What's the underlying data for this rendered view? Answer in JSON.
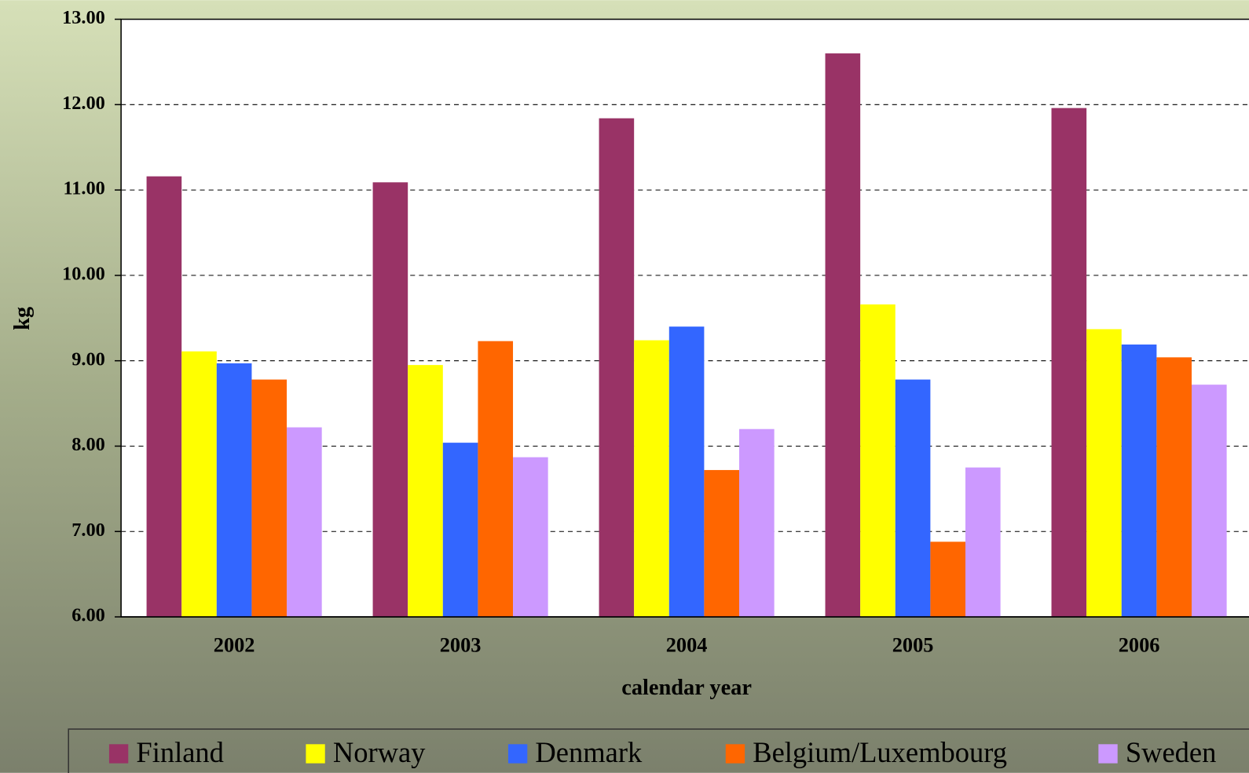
{
  "chart_data": {
    "type": "bar",
    "x_label": "calendar year",
    "y_label": "kg",
    "categories": [
      "2002",
      "2003",
      "2004",
      "2005",
      "2006"
    ],
    "series": [
      {
        "name": "Finland",
        "color": "#993366",
        "values": [
          11.16,
          11.09,
          11.84,
          12.6,
          11.96
        ]
      },
      {
        "name": "Norway",
        "color": "#ffff00",
        "values": [
          9.11,
          8.95,
          9.24,
          9.66,
          9.37
        ]
      },
      {
        "name": "Denmark",
        "color": "#3366ff",
        "values": [
          8.97,
          8.04,
          9.4,
          8.78,
          9.19
        ]
      },
      {
        "name": "Belgium/Luxembourg",
        "color": "#ff6600",
        "values": [
          8.78,
          9.23,
          7.72,
          6.88,
          9.04
        ]
      },
      {
        "name": "Sweden",
        "color": "#cc99ff",
        "values": [
          8.22,
          7.87,
          8.2,
          7.75,
          8.72
        ]
      }
    ],
    "ylim": [
      6,
      13
    ],
    "yticks": [
      {
        "value": 6,
        "label": "6.00"
      },
      {
        "value": 7,
        "label": "7.00"
      },
      {
        "value": 8,
        "label": "8.00"
      },
      {
        "value": 9,
        "label": "9.00"
      },
      {
        "value": 10,
        "label": "10.00"
      },
      {
        "value": 11,
        "label": "11.00"
      },
      {
        "value": 12,
        "label": "12.00"
      },
      {
        "value": 13,
        "label": "13.00"
      }
    ],
    "grid": true,
    "legend": "bottom"
  }
}
